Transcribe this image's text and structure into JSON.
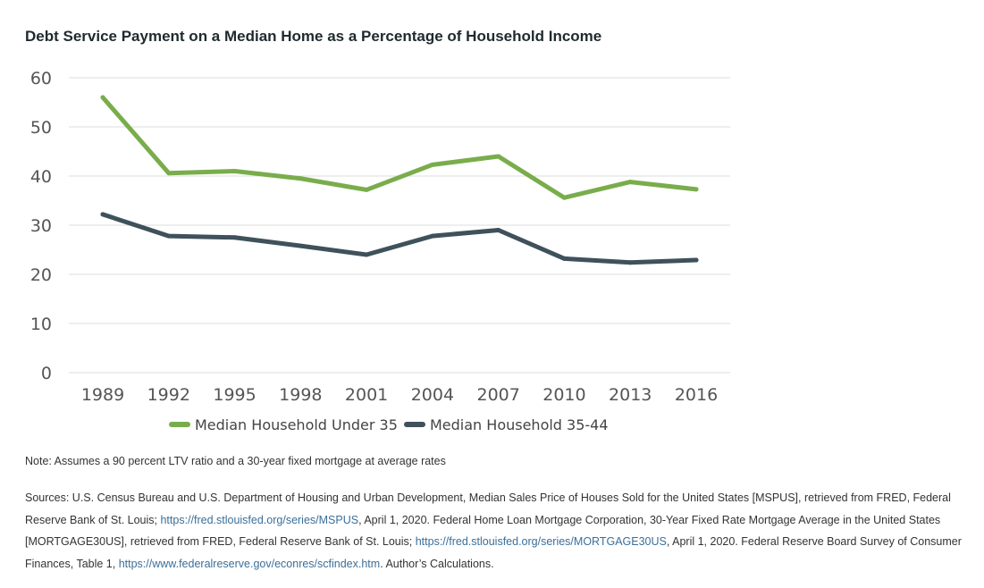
{
  "header": {
    "title": "Debt Service Payment on a Median Home as a Percentage of Household Income"
  },
  "colors": {
    "under35": "#79ad4c",
    "age35_44": "#3f515b",
    "grid": "#dcdcdc"
  },
  "chart_data": {
    "type": "line",
    "title": "Debt Service Payment on a Median Home as a Percentage of Household Income",
    "xlabel": "",
    "ylabel": "",
    "categories": [
      "1989",
      "1992",
      "1995",
      "1998",
      "2001",
      "2004",
      "2007",
      "2010",
      "2013",
      "2016"
    ],
    "y_ticks": [
      "0",
      "10",
      "20",
      "30",
      "40",
      "50",
      "60"
    ],
    "ylim": [
      0,
      60
    ],
    "grid": true,
    "legend_position": "bottom",
    "series": [
      {
        "name": "Median Household Under 35",
        "color": "#79ad4c",
        "values": [
          56,
          40.6,
          41,
          39.5,
          37.2,
          42.3,
          44,
          35.6,
          38.8,
          37.3
        ]
      },
      {
        "name": "Median Household 35-44",
        "color": "#3f515b",
        "values": [
          32.2,
          27.8,
          27.5,
          25.8,
          24,
          27.8,
          29,
          23.2,
          22.4,
          22.9
        ]
      }
    ]
  },
  "note": "Note: Assumes a 90 percent LTV ratio and a 30-year fixed mortgage at average rates",
  "sources": {
    "part1": "Sources: U.S. Census Bureau and U.S. Department of Housing and Urban Development, Median Sales Price of Houses Sold for the United States [MSPUS], retrieved from FRED, Federal Reserve Bank of St. Louis; ",
    "link1": "https://fred.stlouisfed.org/series/MSPUS",
    "part2": ", April 1, 2020. Federal Home Loan Mortgage Corporation, 30-Year Fixed Rate Mortgage Average in the United States [MORTGAGE30US], retrieved from FRED, Federal Reserve Bank of St. Louis; ",
    "link2": "https://fred.stlouisfed.org/series/MORTGAGE30US",
    "part3": ", April 1, 2020. Federal Reserve Board Survey of Consumer Finances, Table 1, ",
    "link3": "https://www.federalreserve.gov/econres/scfindex.htm",
    "part4": ". Author’s Calculations."
  }
}
